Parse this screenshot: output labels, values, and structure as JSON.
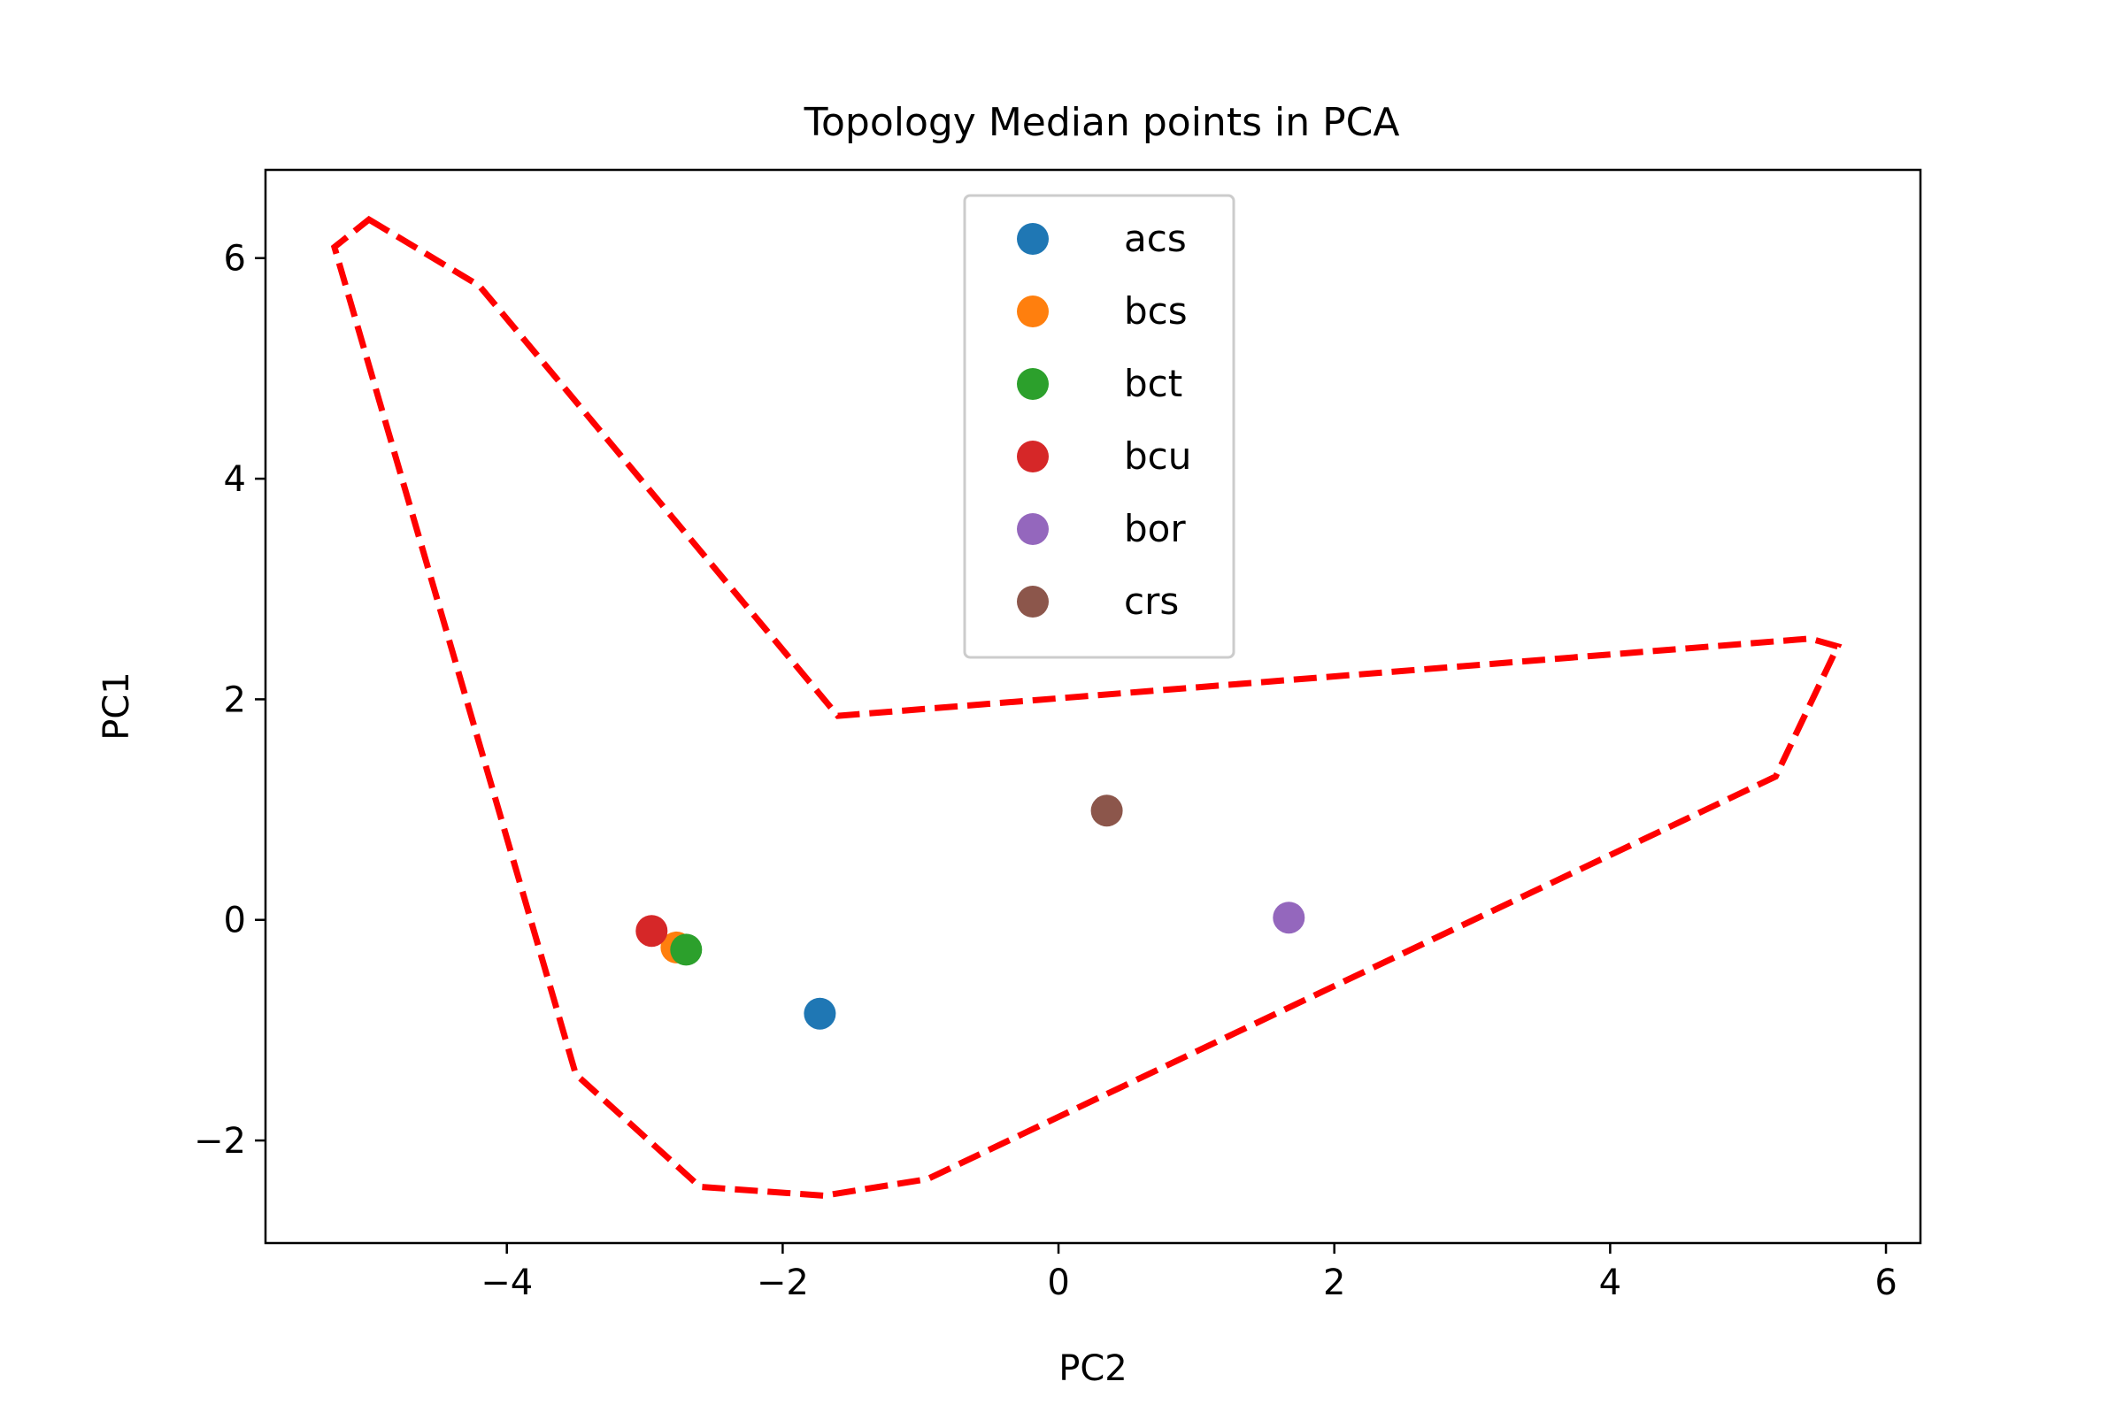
{
  "chart_data": {
    "type": "scatter",
    "title": "Topology Median points in PCA",
    "xlabel": "PC2",
    "ylabel": "PC1",
    "xlim": [
      -5.75,
      6.25
    ],
    "ylim": [
      -2.93,
      6.8
    ],
    "xticks": [
      -4,
      -2,
      0,
      2,
      4,
      6
    ],
    "yticks": [
      -2,
      0,
      2,
      4,
      6
    ],
    "xtick_labels": [
      "−4",
      "−2",
      "0",
      "2",
      "4",
      "6"
    ],
    "ytick_labels": [
      "−2",
      "0",
      "2",
      "4",
      "6"
    ],
    "grid": false,
    "legend_position": "upper-center",
    "series": [
      {
        "name": "acs",
        "color": "#1f77b4",
        "points": [
          {
            "x": -1.73,
            "y": -0.85
          }
        ]
      },
      {
        "name": "bcs",
        "color": "#ff7f0e",
        "points": [
          {
            "x": -2.77,
            "y": -0.25
          }
        ]
      },
      {
        "name": "bct",
        "color": "#2ca02c",
        "points": [
          {
            "x": -2.7,
            "y": -0.27
          }
        ]
      },
      {
        "name": "bcu",
        "color": "#d62728",
        "points": [
          {
            "x": -2.95,
            "y": -0.1
          }
        ]
      },
      {
        "name": "bor",
        "color": "#9467bd",
        "points": [
          {
            "x": 1.67,
            "y": 0.02
          }
        ]
      },
      {
        "name": "crs",
        "color": "#8c564b",
        "points": [
          {
            "x": 0.35,
            "y": 0.99
          }
        ]
      }
    ],
    "hull": {
      "color": "#ff0000",
      "style": "dashed",
      "points": [
        {
          "x": -5.0,
          "y": 6.35
        },
        {
          "x": -4.2,
          "y": 5.75
        },
        {
          "x": -1.6,
          "y": 1.85
        },
        {
          "x": 5.45,
          "y": 2.55
        },
        {
          "x": 5.65,
          "y": 2.48
        },
        {
          "x": 5.2,
          "y": 1.3
        },
        {
          "x": -0.95,
          "y": -2.35
        },
        {
          "x": -1.7,
          "y": -2.5
        },
        {
          "x": -2.6,
          "y": -2.42
        },
        {
          "x": -3.5,
          "y": -1.4
        },
        {
          "x": -5.25,
          "y": 6.1
        }
      ]
    }
  }
}
